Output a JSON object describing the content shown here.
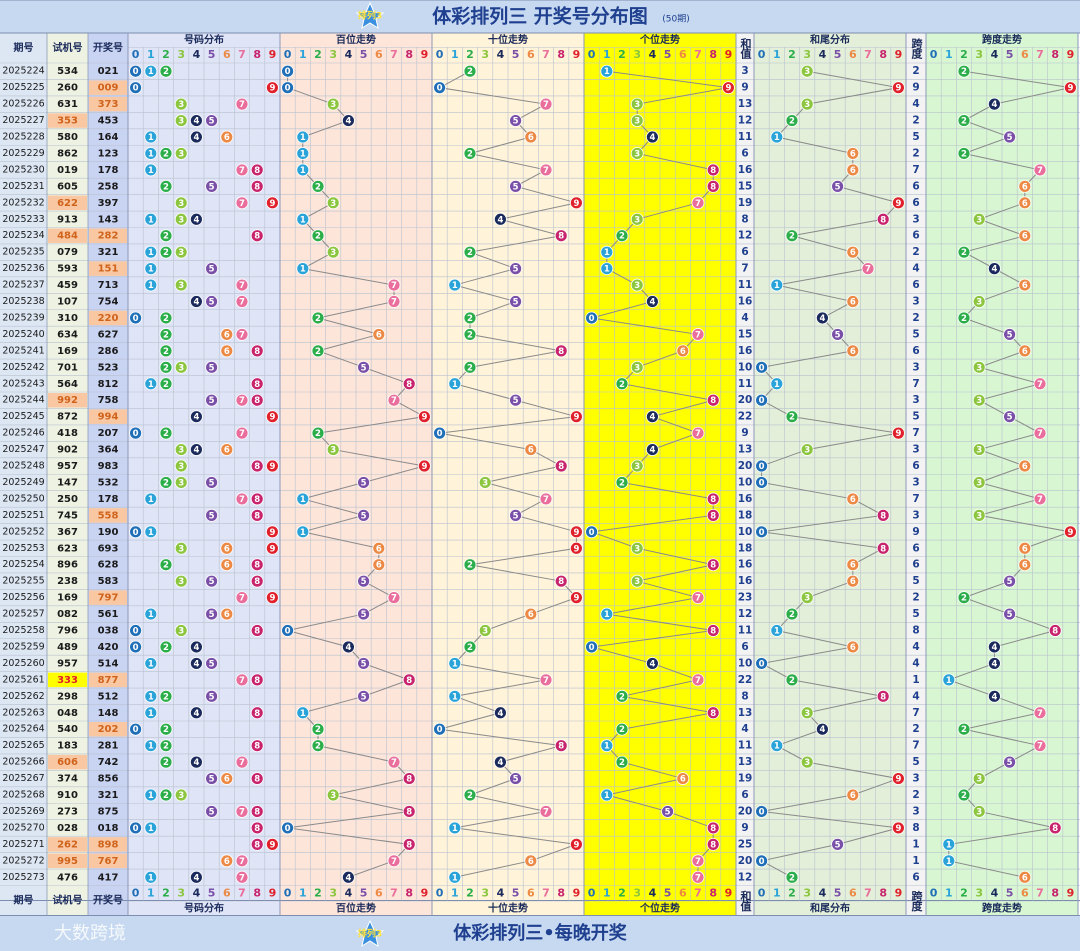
{
  "title": "体彩排列三 开奖号分布图",
  "subtitle": "(50期)",
  "logo": "排列3",
  "watermark": "大数跨境",
  "slogan": "体彩排列三•每晚开奖",
  "headers": {
    "period": "期号",
    "trial": "试机号",
    "draw": "开奖号",
    "distribution": "号码分布",
    "hundreds": "百位走势",
    "tens": "十位走势",
    "ones": "个位走势",
    "sum": "和值",
    "sum_tail": "和尾分布",
    "span": "跨度",
    "span_trend": "跨度走势"
  },
  "digit_labels": [
    0,
    1,
    2,
    3,
    4,
    5,
    6,
    7,
    8,
    9
  ],
  "digit_colors": [
    "#1f6fb8",
    "#2aa3d9",
    "#2bae4a",
    "#8cc63f",
    "#1b2a5c",
    "#7a4fa8",
    "#ec8a45",
    "#ea6e9c",
    "#c8246d",
    "#e0202a"
  ],
  "rows": [
    {
      "period": "2025224",
      "trial": "534",
      "draw": "021",
      "digits": [
        0,
        2,
        1
      ],
      "sum": 3,
      "sum_tail": 3,
      "span": 2
    },
    {
      "period": "2025225",
      "trial": "260",
      "draw": "009",
      "digits": [
        0,
        0,
        9
      ],
      "sum": 9,
      "sum_tail": 9,
      "span": 9
    },
    {
      "period": "2025226",
      "trial": "631",
      "draw": "373",
      "digits": [
        3,
        7,
        3
      ],
      "sum": 13,
      "sum_tail": 3,
      "span": 4
    },
    {
      "period": "2025227",
      "trial": "353",
      "draw": "453",
      "digits": [
        4,
        5,
        3
      ],
      "sum": 12,
      "sum_tail": 2,
      "span": 2
    },
    {
      "period": "2025228",
      "trial": "580",
      "draw": "164",
      "digits": [
        1,
        6,
        4
      ],
      "sum": 11,
      "sum_tail": 1,
      "span": 5
    },
    {
      "period": "2025229",
      "trial": "862",
      "draw": "123",
      "digits": [
        1,
        2,
        3
      ],
      "sum": 6,
      "sum_tail": 6,
      "span": 2
    },
    {
      "period": "2025230",
      "trial": "019",
      "draw": "178",
      "digits": [
        1,
        7,
        8
      ],
      "sum": 16,
      "sum_tail": 6,
      "span": 7
    },
    {
      "period": "2025231",
      "trial": "605",
      "draw": "258",
      "digits": [
        2,
        5,
        8
      ],
      "sum": 15,
      "sum_tail": 5,
      "span": 6
    },
    {
      "period": "2025232",
      "trial": "622",
      "draw": "397",
      "digits": [
        3,
        9,
        7
      ],
      "sum": 19,
      "sum_tail": 9,
      "span": 6
    },
    {
      "period": "2025233",
      "trial": "913",
      "draw": "143",
      "digits": [
        1,
        4,
        3
      ],
      "sum": 8,
      "sum_tail": 8,
      "span": 3
    },
    {
      "period": "2025234",
      "trial": "484",
      "draw": "282",
      "digits": [
        2,
        8,
        2
      ],
      "sum": 12,
      "sum_tail": 2,
      "span": 6
    },
    {
      "period": "2025235",
      "trial": "079",
      "draw": "321",
      "digits": [
        3,
        2,
        1
      ],
      "sum": 6,
      "sum_tail": 6,
      "span": 2
    },
    {
      "period": "2025236",
      "trial": "593",
      "draw": "151",
      "digits": [
        1,
        5,
        1
      ],
      "sum": 7,
      "sum_tail": 7,
      "span": 4
    },
    {
      "period": "2025237",
      "trial": "459",
      "draw": "713",
      "digits": [
        7,
        1,
        3
      ],
      "sum": 11,
      "sum_tail": 1,
      "span": 6
    },
    {
      "period": "2025238",
      "trial": "107",
      "draw": "754",
      "digits": [
        7,
        5,
        4
      ],
      "sum": 16,
      "sum_tail": 6,
      "span": 3
    },
    {
      "period": "2025239",
      "trial": "310",
      "draw": "220",
      "digits": [
        2,
        2,
        0
      ],
      "sum": 4,
      "sum_tail": 4,
      "span": 2
    },
    {
      "period": "2025240",
      "trial": "634",
      "draw": "627",
      "digits": [
        6,
        2,
        7
      ],
      "sum": 15,
      "sum_tail": 5,
      "span": 5
    },
    {
      "period": "2025241",
      "trial": "169",
      "draw": "286",
      "digits": [
        2,
        8,
        6
      ],
      "sum": 16,
      "sum_tail": 6,
      "span": 6
    },
    {
      "period": "2025242",
      "trial": "701",
      "draw": "523",
      "digits": [
        5,
        2,
        3
      ],
      "sum": 10,
      "sum_tail": 0,
      "span": 3
    },
    {
      "period": "2025243",
      "trial": "564",
      "draw": "812",
      "digits": [
        8,
        1,
        2
      ],
      "sum": 11,
      "sum_tail": 1,
      "span": 7
    },
    {
      "period": "2025244",
      "trial": "992",
      "draw": "758",
      "digits": [
        7,
        5,
        8
      ],
      "sum": 20,
      "sum_tail": 0,
      "span": 3
    },
    {
      "period": "2025245",
      "trial": "872",
      "draw": "994",
      "digits": [
        9,
        9,
        4
      ],
      "sum": 22,
      "sum_tail": 2,
      "span": 5
    },
    {
      "period": "2025246",
      "trial": "418",
      "draw": "207",
      "digits": [
        2,
        0,
        7
      ],
      "sum": 9,
      "sum_tail": 9,
      "span": 7
    },
    {
      "period": "2025247",
      "trial": "902",
      "draw": "364",
      "digits": [
        3,
        6,
        4
      ],
      "sum": 13,
      "sum_tail": 3,
      "span": 3
    },
    {
      "period": "2025248",
      "trial": "957",
      "draw": "983",
      "digits": [
        9,
        8,
        3
      ],
      "sum": 20,
      "sum_tail": 0,
      "span": 6
    },
    {
      "period": "2025249",
      "trial": "147",
      "draw": "532",
      "digits": [
        5,
        3,
        2
      ],
      "sum": 10,
      "sum_tail": 0,
      "span": 3
    },
    {
      "period": "2025250",
      "trial": "250",
      "draw": "178",
      "digits": [
        1,
        7,
        8
      ],
      "sum": 16,
      "sum_tail": 6,
      "span": 7
    },
    {
      "period": "2025251",
      "trial": "745",
      "draw": "558",
      "digits": [
        5,
        5,
        8
      ],
      "sum": 18,
      "sum_tail": 8,
      "span": 3
    },
    {
      "period": "2025252",
      "trial": "367",
      "draw": "190",
      "digits": [
        1,
        9,
        0
      ],
      "sum": 10,
      "sum_tail": 0,
      "span": 9
    },
    {
      "period": "2025253",
      "trial": "623",
      "draw": "693",
      "digits": [
        6,
        9,
        3
      ],
      "sum": 18,
      "sum_tail": 8,
      "span": 6
    },
    {
      "period": "2025254",
      "trial": "896",
      "draw": "628",
      "digits": [
        6,
        2,
        8
      ],
      "sum": 16,
      "sum_tail": 6,
      "span": 6
    },
    {
      "period": "2025255",
      "trial": "238",
      "draw": "583",
      "digits": [
        5,
        8,
        3
      ],
      "sum": 16,
      "sum_tail": 6,
      "span": 5
    },
    {
      "period": "2025256",
      "trial": "169",
      "draw": "797",
      "digits": [
        7,
        9,
        7
      ],
      "sum": 23,
      "sum_tail": 3,
      "span": 2
    },
    {
      "period": "2025257",
      "trial": "082",
      "draw": "561",
      "digits": [
        5,
        6,
        1
      ],
      "sum": 12,
      "sum_tail": 2,
      "span": 5
    },
    {
      "period": "2025258",
      "trial": "796",
      "draw": "038",
      "digits": [
        0,
        3,
        8
      ],
      "sum": 11,
      "sum_tail": 1,
      "span": 8
    },
    {
      "period": "2025259",
      "trial": "489",
      "draw": "420",
      "digits": [
        4,
        2,
        0
      ],
      "sum": 6,
      "sum_tail": 6,
      "span": 4
    },
    {
      "period": "2025260",
      "trial": "957",
      "draw": "514",
      "digits": [
        5,
        1,
        4
      ],
      "sum": 10,
      "sum_tail": 0,
      "span": 4
    },
    {
      "period": "2025261",
      "trial": "333",
      "draw": "877",
      "digits": [
        8,
        7,
        7
      ],
      "sum": 22,
      "sum_tail": 2,
      "span": 1
    },
    {
      "period": "2025262",
      "trial": "298",
      "draw": "512",
      "digits": [
        5,
        1,
        2
      ],
      "sum": 8,
      "sum_tail": 8,
      "span": 4
    },
    {
      "period": "2025263",
      "trial": "048",
      "draw": "148",
      "digits": [
        1,
        4,
        8
      ],
      "sum": 13,
      "sum_tail": 3,
      "span": 7
    },
    {
      "period": "2025264",
      "trial": "540",
      "draw": "202",
      "digits": [
        2,
        0,
        2
      ],
      "sum": 4,
      "sum_tail": 4,
      "span": 2
    },
    {
      "period": "2025265",
      "trial": "183",
      "draw": "281",
      "digits": [
        2,
        8,
        1
      ],
      "sum": 11,
      "sum_tail": 1,
      "span": 7
    },
    {
      "period": "2025266",
      "trial": "606",
      "draw": "742",
      "digits": [
        7,
        4,
        2
      ],
      "sum": 13,
      "sum_tail": 3,
      "span": 5
    },
    {
      "period": "2025267",
      "trial": "374",
      "draw": "856",
      "digits": [
        8,
        5,
        6
      ],
      "sum": 19,
      "sum_tail": 9,
      "span": 3
    },
    {
      "period": "2025268",
      "trial": "910",
      "draw": "321",
      "digits": [
        3,
        2,
        1
      ],
      "sum": 6,
      "sum_tail": 6,
      "span": 2
    },
    {
      "period": "2025269",
      "trial": "273",
      "draw": "875",
      "digits": [
        8,
        7,
        5
      ],
      "sum": 20,
      "sum_tail": 0,
      "span": 3
    },
    {
      "period": "2025270",
      "trial": "028",
      "draw": "018",
      "digits": [
        0,
        1,
        8
      ],
      "sum": 9,
      "sum_tail": 9,
      "span": 8
    },
    {
      "period": "2025271",
      "trial": "262",
      "draw": "898",
      "digits": [
        8,
        9,
        8
      ],
      "sum": 25,
      "sum_tail": 5,
      "span": 1
    },
    {
      "period": "2025272",
      "trial": "995",
      "draw": "767",
      "digits": [
        7,
        6,
        7
      ],
      "sum": 20,
      "sum_tail": 0,
      "span": 1
    },
    {
      "period": "2025273",
      "trial": "476",
      "draw": "417",
      "digits": [
        4,
        1,
        7
      ],
      "sum": 12,
      "sum_tail": 2,
      "span": 6
    }
  ]
}
